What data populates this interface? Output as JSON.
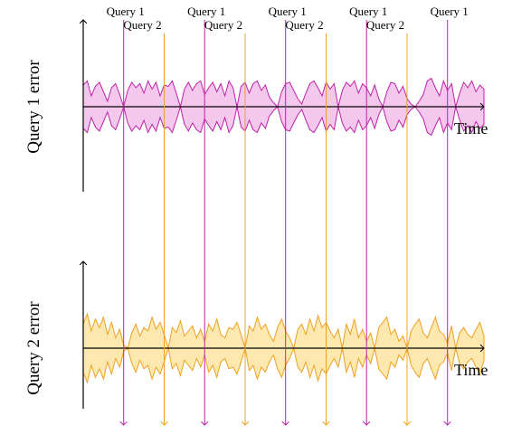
{
  "chart_data": [
    {
      "type": "area",
      "ylabel": "Query 1 error",
      "xlabel": "Time",
      "color": "#c020a8",
      "fill": "#f4c8ec",
      "x": [
        0,
        1,
        2,
        3,
        4,
        5,
        6,
        7,
        8,
        9,
        10,
        11,
        12,
        13,
        14,
        15,
        16,
        17,
        18,
        19,
        20,
        21,
        22,
        23,
        24,
        25,
        26,
        27,
        28,
        29,
        30,
        31,
        32,
        33,
        34,
        35,
        36,
        37,
        38,
        39,
        40,
        41,
        42,
        43,
        44,
        45,
        46,
        47,
        48,
        49,
        50,
        51,
        52,
        53,
        54,
        55,
        56,
        57,
        58,
        59,
        60,
        61,
        62,
        63,
        64,
        65,
        66,
        67,
        68,
        69,
        70,
        71,
        72,
        73,
        74,
        75,
        76,
        77,
        78,
        79,
        80,
        81,
        82,
        83,
        84,
        85,
        86,
        87,
        88,
        89,
        90,
        91,
        92,
        93,
        94,
        95,
        96,
        97,
        98,
        99
      ],
      "values": [
        0.8,
        0.95,
        0.4,
        0.75,
        0.9,
        0.55,
        0.2,
        0.7,
        0.85,
        0.45,
        0.0,
        0.6,
        0.9,
        0.7,
        0.85,
        0.5,
        0.95,
        0.65,
        0.9,
        0.4,
        0.8,
        0.75,
        0.95,
        0.5,
        0.0,
        0.65,
        0.9,
        0.6,
        0.85,
        0.95,
        0.45,
        0.7,
        0.9,
        0.55,
        0.85,
        0.4,
        0.95,
        0.7,
        0.0,
        0.75,
        0.9,
        0.5,
        0.85,
        0.95,
        0.6,
        0.8,
        0.35,
        0.15,
        0.0,
        0.55,
        0.85,
        0.9,
        0.6,
        0.3,
        0.1,
        0.5,
        0.85,
        0.95,
        0.7,
        0.4,
        0.9,
        0.65,
        0.85,
        0.0,
        0.6,
        0.9,
        0.75,
        0.95,
        0.5,
        0.85,
        0.7,
        0.4,
        0.8,
        0.3,
        0.0,
        0.55,
        0.9,
        0.85,
        0.5,
        0.75,
        0.3,
        0.1,
        0.0,
        0.2,
        0.45,
        0.95,
        1.05,
        0.7,
        0.4,
        0.95,
        0.6,
        0.85,
        0.0,
        0.5,
        0.9,
        0.7,
        0.95,
        0.55,
        0.8,
        0.65
      ]
    },
    {
      "type": "area",
      "ylabel": "Query 2 error",
      "xlabel": "Time",
      "color": "#f0a020",
      "fill": "#fde9b0",
      "x": [
        0,
        1,
        2,
        3,
        4,
        5,
        6,
        7,
        8,
        9,
        10,
        11,
        12,
        13,
        14,
        15,
        16,
        17,
        18,
        19,
        20,
        21,
        22,
        23,
        24,
        25,
        26,
        27,
        28,
        29,
        30,
        31,
        32,
        33,
        34,
        35,
        36,
        37,
        38,
        39,
        40,
        41,
        42,
        43,
        44,
        45,
        46,
        47,
        48,
        49,
        50,
        51,
        52,
        53,
        54,
        55,
        56,
        57,
        58,
        59,
        60,
        61,
        62,
        63,
        64,
        65,
        66,
        67,
        68,
        69,
        70,
        71,
        72,
        73,
        74,
        75,
        76,
        77,
        78,
        79,
        80,
        81,
        82,
        83,
        84,
        85,
        86,
        87,
        88,
        89,
        90,
        91,
        92,
        93,
        94,
        95,
        96,
        97,
        98,
        99
      ],
      "values": [
        0.7,
        1.0,
        0.5,
        0.85,
        0.6,
        0.9,
        0.4,
        0.75,
        0.3,
        0.55,
        0.1,
        0.0,
        0.45,
        0.7,
        0.35,
        0.6,
        0.5,
        0.9,
        0.55,
        0.75,
        0.4,
        0.0,
        0.6,
        0.45,
        0.8,
        0.35,
        0.5,
        0.65,
        0.3,
        0.55,
        0.2,
        0.7,
        0.5,
        0.85,
        0.4,
        0.3,
        0.6,
        0.55,
        0.75,
        0.4,
        0.0,
        0.65,
        0.5,
        0.9,
        0.55,
        0.7,
        0.4,
        0.2,
        0.6,
        0.85,
        0.5,
        0.3,
        0.0,
        0.55,
        0.7,
        0.4,
        0.85,
        0.5,
        0.95,
        0.6,
        0.75,
        0.5,
        0.3,
        0.55,
        0.0,
        0.7,
        0.4,
        0.85,
        0.3,
        0.55,
        0.2,
        0.45,
        0.0,
        0.6,
        0.75,
        0.9,
        0.4,
        0.55,
        0.2,
        0.35,
        0.0,
        0.5,
        0.7,
        0.85,
        0.45,
        0.3,
        0.6,
        0.9,
        0.5,
        0.4,
        0.15,
        0.65,
        0.0,
        0.45,
        0.6,
        0.4,
        0.3,
        0.55,
        0.75,
        0.35
      ]
    }
  ],
  "queries": [
    {
      "label": "Query 1",
      "x": 10,
      "series": "Query 1"
    },
    {
      "label": "Query 2",
      "x": 20,
      "series": "Query 2"
    },
    {
      "label": "Query 1",
      "x": 30,
      "series": "Query 1"
    },
    {
      "label": "Query 2",
      "x": 40,
      "series": "Query 2"
    },
    {
      "label": "Query 1",
      "x": 50,
      "series": "Query 1"
    },
    {
      "label": "Query 2",
      "x": 60,
      "series": "Query 2"
    },
    {
      "label": "Query 1",
      "x": 70,
      "series": "Query 1"
    },
    {
      "label": "Query 2",
      "x": 80,
      "series": "Query 2"
    },
    {
      "label": "Query 1",
      "x": 90,
      "series": "Query 1"
    }
  ],
  "colors": {
    "Query 1": "#c020a8",
    "Query 2": "#f0a020"
  }
}
